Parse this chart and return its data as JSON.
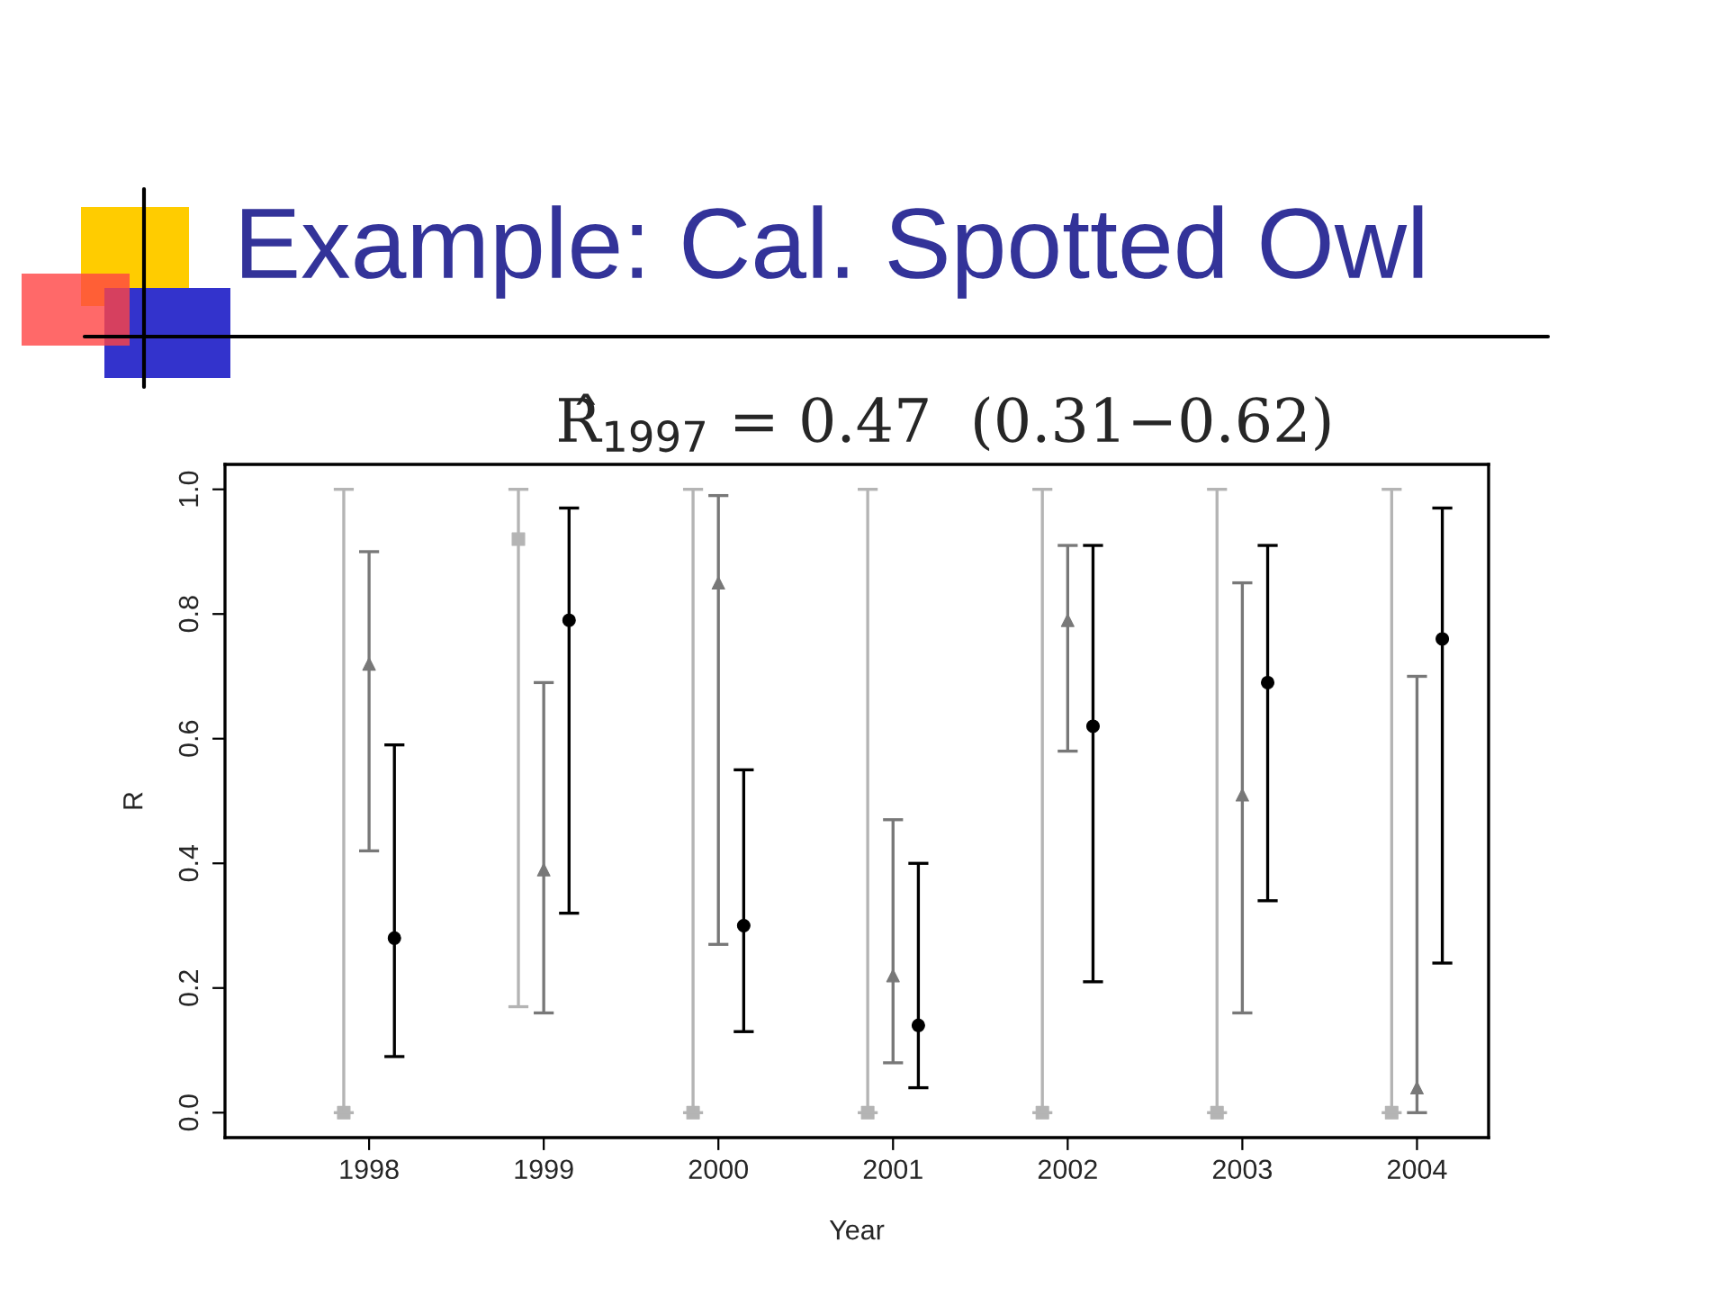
{
  "chart_data": {
    "type": "scatter",
    "title": "Example: Cal. Spotted Owl",
    "subtitle": "R̂$_{1997}$ = 0.47  (0.31−0.62)",
    "xlabel": "Year",
    "ylabel": "R",
    "categories": [
      "1998",
      "1999",
      "2000",
      "2001",
      "2002",
      "2003",
      "2004"
    ],
    "series": [
      {
        "color": "#b4b4b4",
        "marker": "square",
        "values": [
          0,
          0.92,
          0,
          0,
          0,
          0,
          0
        ],
        "errors": [
          [
            0,
            1.0
          ],
          [
            0.17,
            1.0
          ],
          [
            0,
            1.0
          ],
          [
            0,
            1.0
          ],
          [
            0,
            1.0
          ],
          [
            0,
            1.0
          ],
          [
            0,
            1.0
          ]
        ]
      },
      {
        "color": "#787878",
        "marker": "triangle",
        "values": [
          0.72,
          0.39,
          0.85,
          0.22,
          0.79,
          0.51,
          0.04
        ],
        "errors": [
          [
            0.42,
            0.9
          ],
          [
            0.16,
            0.69
          ],
          [
            0.27,
            0.99
          ],
          [
            0.08,
            0.47
          ],
          [
            0.58,
            0.91
          ],
          [
            0.16,
            0.85
          ],
          [
            0.0,
            0.7
          ]
        ]
      },
      {
        "color": "#000000",
        "marker": "circle",
        "values": [
          0.28,
          0.79,
          0.3,
          0.14,
          0.62,
          0.69,
          0.76
        ],
        "errors": [
          [
            0.09,
            0.59
          ],
          [
            0.32,
            0.97
          ],
          [
            0.13,
            0.55
          ],
          [
            0.04,
            0.4
          ],
          [
            0.21,
            0.91
          ],
          [
            0.34,
            0.91
          ],
          [
            0.24,
            0.97
          ]
        ]
      }
    ],
    "ylim": [
      -0.04,
      1.04
    ],
    "yticks": [
      {
        "value": 0,
        "label": "0.0"
      },
      {
        "value": 0.2,
        "label": "0.2"
      },
      {
        "value": 0.4,
        "label": "0.4"
      },
      {
        "value": 0.6,
        "label": "0.6"
      },
      {
        "value": 0.8,
        "label": "0.8"
      },
      {
        "value": 1.0,
        "label": "1.0"
      }
    ],
    "grid": false,
    "legend": false
  }
}
